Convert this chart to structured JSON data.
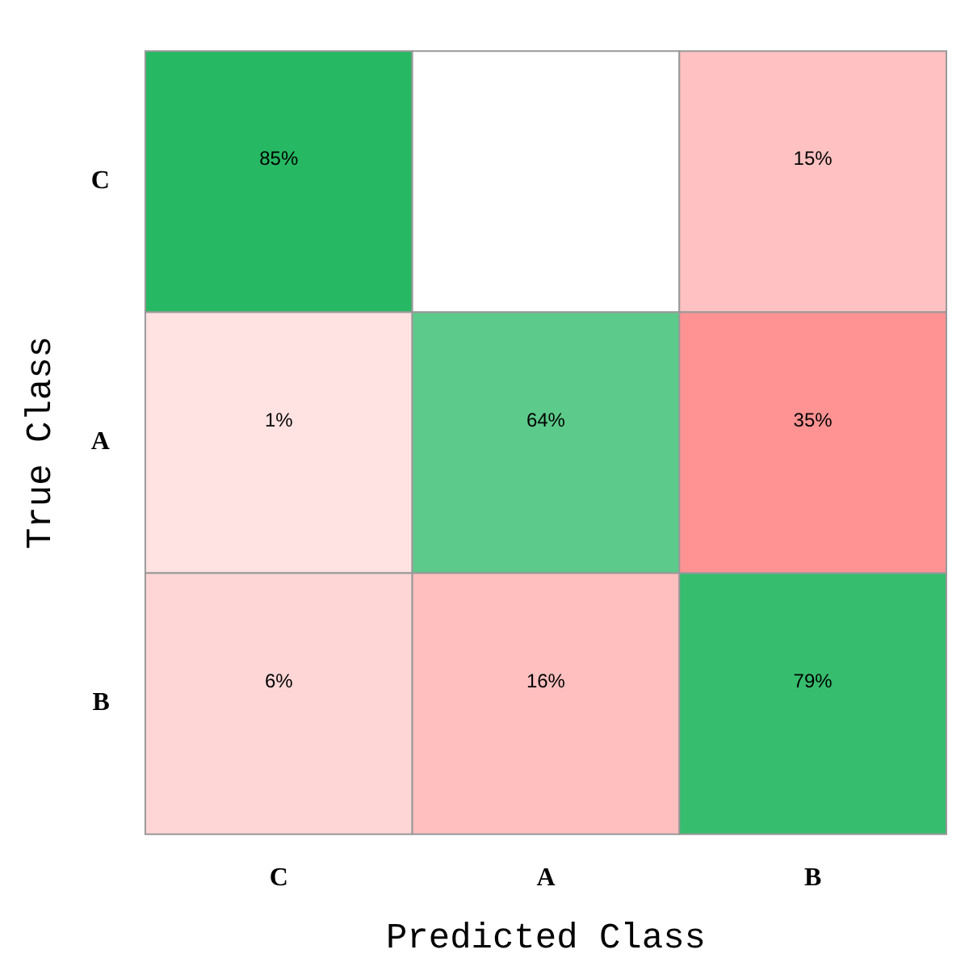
{
  "chart_data": {
    "type": "heatmap",
    "xlabel": "Predicted Class",
    "ylabel": "True Class",
    "categories": [
      "C",
      "A",
      "B"
    ],
    "y_categories": [
      "C",
      "A",
      "B"
    ],
    "cells": [
      [
        85,
        null,
        15
      ],
      [
        1,
        64,
        35
      ],
      [
        6,
        16,
        79
      ]
    ],
    "cell_labels": [
      [
        "85%",
        null,
        "15%"
      ],
      [
        "1%",
        "64%",
        "35%"
      ],
      [
        "6%",
        "16%",
        "79%"
      ]
    ]
  }
}
